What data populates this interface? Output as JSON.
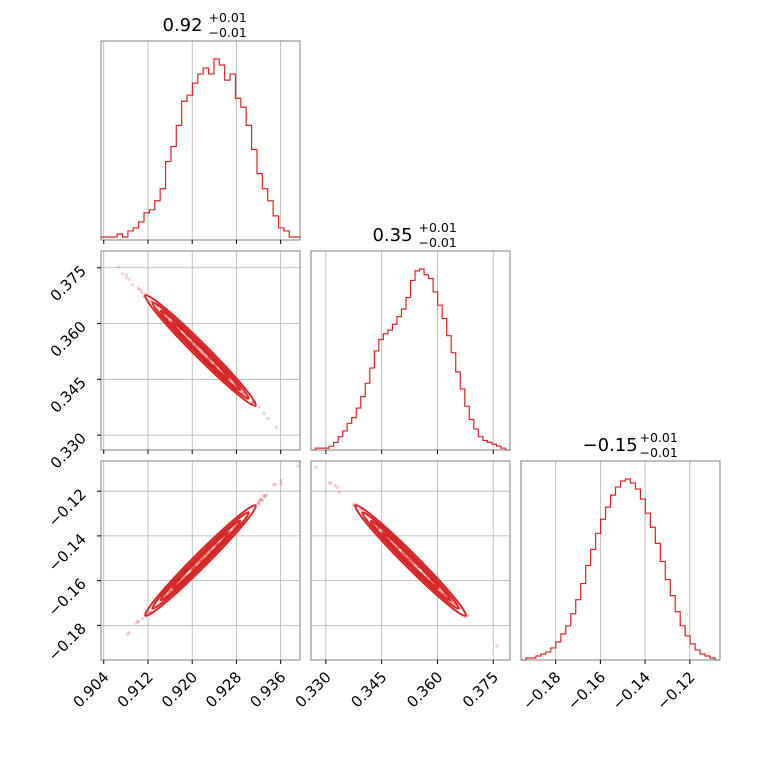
{
  "chart_data": {
    "type": "corner",
    "color": "#d62728",
    "parameters": [
      {
        "title": {
          "value": "0.92",
          "plus": "+0.01",
          "minus": "−0.01"
        },
        "range": [
          0.9035,
          0.9395
        ],
        "ticks": [
          0.904,
          0.912,
          0.92,
          0.928,
          0.936
        ],
        "tick_labels": [
          "0.904",
          "0.912",
          "0.920",
          "0.928",
          "0.936"
        ],
        "hist": [
          1,
          1,
          1,
          2,
          1,
          3,
          4,
          6,
          9,
          10,
          13,
          17,
          26,
          31,
          38,
          46,
          48,
          52,
          55,
          57,
          55,
          60,
          58,
          53,
          55,
          47,
          44,
          38,
          30,
          22,
          17,
          13,
          8,
          4,
          3,
          1,
          1
        ]
      },
      {
        "title": {
          "value": "0.35",
          "plus": "+0.01",
          "minus": "−0.01"
        },
        "range": [
          0.326,
          0.3795
        ],
        "ticks": [
          0.33,
          0.345,
          0.36,
          0.375
        ],
        "tick_labels": [
          "0.330",
          "0.345",
          "0.360",
          "0.375"
        ],
        "hist": [
          0,
          1,
          1,
          1,
          2,
          4,
          7,
          10,
          14,
          17,
          22,
          28,
          35,
          43,
          52,
          58,
          61,
          63,
          66,
          70,
          74,
          80,
          89,
          94,
          95,
          92,
          90,
          83,
          76,
          69,
          60,
          51,
          41,
          32,
          23,
          16,
          11,
          7,
          5,
          4,
          3,
          2,
          1,
          0
        ]
      },
      {
        "title": {
          "value": "−0.15",
          "plus": "+0.01",
          "minus": "−0.01"
        },
        "range": [
          -0.1955,
          -0.1065
        ],
        "ticks": [
          -0.18,
          -0.16,
          -0.14,
          -0.12
        ],
        "tick_labels": [
          "−0.18",
          "−0.16",
          "−0.14",
          "−0.12"
        ],
        "hist": [
          0,
          1,
          1,
          2,
          3,
          4,
          6,
          9,
          13,
          17,
          23,
          30,
          38,
          47,
          55,
          63,
          70,
          76,
          82,
          86,
          89,
          90,
          88,
          85,
          80,
          73,
          66,
          58,
          49,
          40,
          32,
          24,
          17,
          12,
          8,
          5,
          3,
          2,
          1,
          0
        ]
      }
    ],
    "pairs": [
      {
        "x": 0,
        "y": 1,
        "slope": -1.35
      },
      {
        "x": 0,
        "y": 2,
        "slope": 2.45
      },
      {
        "x": 1,
        "y": 2,
        "slope": -1.82
      }
    ],
    "grid": true,
    "layout": "lower-triangle"
  }
}
